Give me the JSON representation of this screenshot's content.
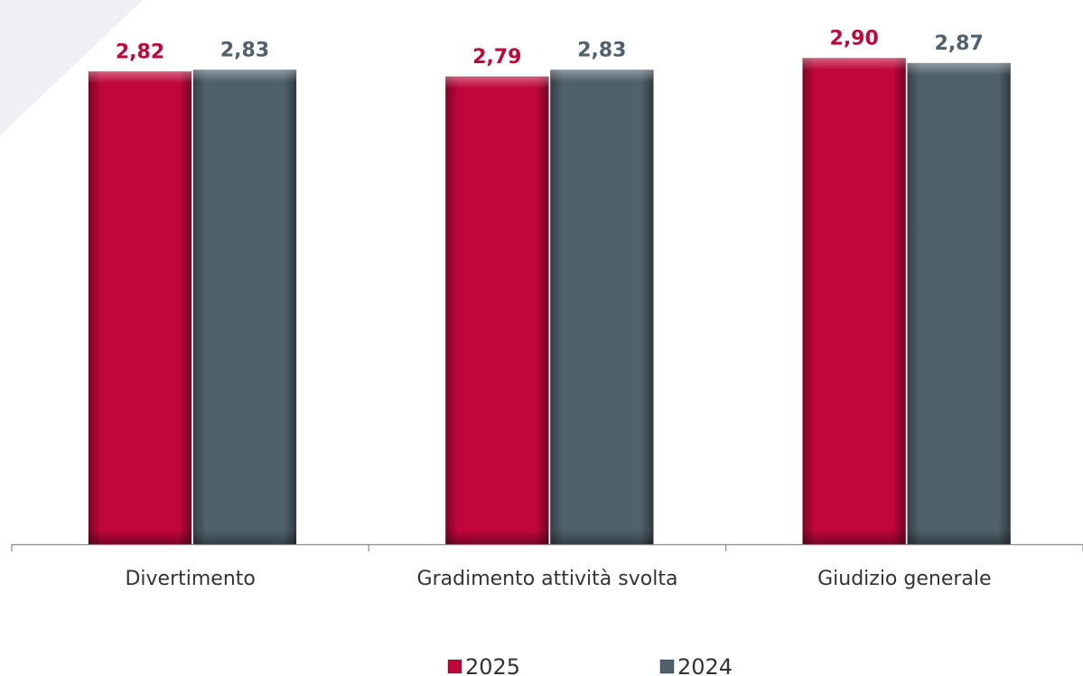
{
  "chart_data": {
    "type": "bar",
    "categories": [
      "Divertimento",
      "Gradimento attività svolta",
      "Giudizio generale"
    ],
    "series": [
      {
        "name": "2025",
        "values": [
          2.82,
          2.79,
          2.9
        ],
        "labels": [
          "2,82",
          "2,79",
          "2,90"
        ],
        "color": "#c0063a"
      },
      {
        "name": "2024",
        "values": [
          2.83,
          2.83,
          2.87
        ],
        "labels": [
          "2,83",
          "2,83",
          "2,87"
        ],
        "color": "#4f616c"
      }
    ],
    "ylim": [
      0,
      3
    ],
    "grid": false,
    "legend_position": "bottom"
  },
  "colors": {
    "decoration": "#eef0f3",
    "axis": "#8c8c8c",
    "category_text": "#333333"
  }
}
